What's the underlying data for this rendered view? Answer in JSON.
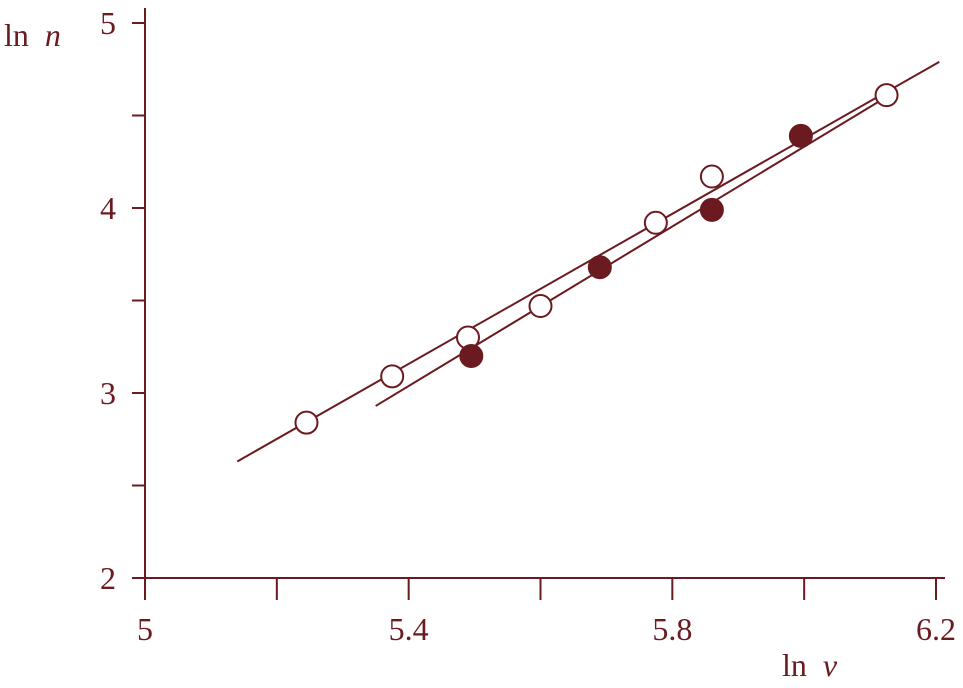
{
  "chart_data": {
    "type": "scatter",
    "color": "#6b1a1f",
    "xlabel_prefix": "ln",
    "xlabel_var": "v",
    "ylabel_prefix": "ln",
    "ylabel_var": "n",
    "xlim": [
      5.0,
      6.2
    ],
    "ylim": [
      2.0,
      5.0
    ],
    "x_ticks_major": [
      5.0,
      5.4,
      5.8,
      6.2
    ],
    "x_ticks_minor": [
      5.2,
      5.6,
      6.0
    ],
    "y_ticks_major": [
      2,
      3,
      4,
      5
    ],
    "y_ticks_minor": [
      2.5,
      3.5,
      4.5
    ],
    "grid": false,
    "series": [
      {
        "marker": "open-circle",
        "points": [
          {
            "x": 5.245,
            "y": 2.84
          },
          {
            "x": 5.375,
            "y": 3.09
          },
          {
            "x": 5.49,
            "y": 3.3
          },
          {
            "x": 5.6,
            "y": 3.47
          },
          {
            "x": 5.775,
            "y": 3.92
          },
          {
            "x": 5.86,
            "y": 4.17
          },
          {
            "x": 6.125,
            "y": 4.61
          }
        ],
        "fit_line": {
          "x": [
            5.14,
            6.205
          ],
          "y": [
            2.63,
            4.79
          ]
        }
      },
      {
        "marker": "filled-circle",
        "points": [
          {
            "x": 5.495,
            "y": 3.2
          },
          {
            "x": 5.69,
            "y": 3.68
          },
          {
            "x": 5.86,
            "y": 3.99
          },
          {
            "x": 5.995,
            "y": 4.39
          }
        ],
        "fit_line": {
          "x": [
            5.35,
            6.12
          ],
          "y": [
            2.93,
            4.59
          ]
        }
      }
    ]
  }
}
